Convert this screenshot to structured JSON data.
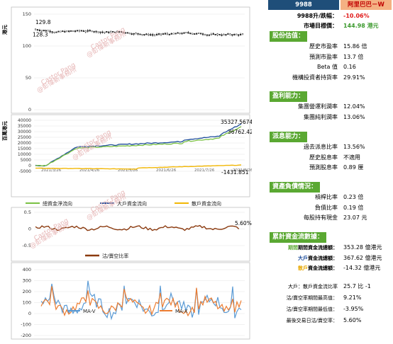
{
  "ticker": {
    "code": "9988",
    "name": "阿里巴巴－W"
  },
  "summary": [
    {
      "label": "9988升/跌幅：",
      "value": "-10.06%",
      "color": "#e01919",
      "bold": true
    },
    {
      "label": "市場目標價：",
      "value": "144.98 港元",
      "color": "#3c9a2e",
      "bold": true
    }
  ],
  "sections": [
    {
      "title": "股份估值：",
      "rows": [
        {
          "label": "歷史市盈率",
          "value": "15.86 倍"
        },
        {
          "label": "預測市盈率",
          "value": "13.7 倍"
        },
        {
          "label": "Beta 值",
          "value": "0.16"
        },
        {
          "label": "機構投資者持貨率",
          "value": "29.91%"
        }
      ]
    },
    {
      "title": "盈利能力：",
      "rows": [
        {
          "label": "集團營運利潤率",
          "value": "12.04%"
        },
        {
          "label": "集團純利潤率",
          "value": "13.06%"
        }
      ]
    },
    {
      "title": "派息能力：",
      "rows": [
        {
          "label": "過去派息比率",
          "value": "13.56%"
        },
        {
          "label": "歷史股息率",
          "value": "不適用"
        },
        {
          "label": "預測股息率",
          "value": "0.89 厘"
        }
      ]
    },
    {
      "title": "資產負債情況：",
      "rows": [
        {
          "label": "槓桿比率",
          "value": "0.23 倍"
        },
        {
          "label": "負債比率",
          "value": "0.19 倍"
        },
        {
          "label": "每股持有現金",
          "value": "23.07 元"
        }
      ]
    },
    {
      "title": "累計資金流數據：",
      "rows": [
        {
          "label": "期間資金流總額：",
          "prefix": "期間",
          "value": "353.28 億港元",
          "prefixColor": "#5aa832"
        },
        {
          "label": "資金流總額：",
          "prefix": "大戶",
          "value": "367.62 億港元",
          "prefixColor": "#1f4e9c"
        },
        {
          "label": "資金流總額：",
          "prefix": "散戶",
          "value": "-14.32 億港元",
          "prefixColor": "#e8a800"
        }
      ]
    }
  ],
  "footer": [
    {
      "label": "大戶：散戶資金流比率",
      "value": "25.7 比 -1"
    },
    {
      "label": "沽/賣空率期間最高值：",
      "value": "9.21%"
    },
    {
      "label": "沽/賣空率期間最低值：",
      "value": "-3.95%"
    },
    {
      "label": "最後交易日沽/賣空率：",
      "value": "5.60%"
    }
  ],
  "watermark": {
    "line1": "Castor Pang",
    "line2": "@彭偉新事務所"
  },
  "chart_data": [
    {
      "type": "line",
      "ylabel": "港元",
      "ylim": [
        0,
        150
      ],
      "yticks": [
        0,
        50,
        100,
        150
      ],
      "annotations": [
        {
          "text": "129.8"
        },
        {
          "text": "128.3"
        }
      ],
      "price_high": 129.8,
      "price_low": 128.3,
      "points": 100,
      "description_free": true
    },
    {
      "type": "line",
      "ylabel": "百萬港元",
      "ylim": [
        -5000,
        40000
      ],
      "yticks": [
        -5000,
        0,
        5000,
        10000,
        15000,
        20000,
        25000,
        30000,
        35000,
        40000
      ],
      "x_tick_labels": [
        "2021/3/26",
        "2021/4/26",
        "2021/5/26",
        "2021/6/26",
        "2021/7/26",
        "2021/8/26"
      ],
      "annotations": [
        {
          "text": "35327.5674"
        },
        {
          "text": "36762.42"
        },
        {
          "text": "-1431.851"
        }
      ],
      "series": [
        {
          "name": "總資金淨流向",
          "color": "#7ac143",
          "final": 35327.5674
        },
        {
          "name": "大戶資金流向",
          "color": "#1f4e9c",
          "final": 36762.42
        },
        {
          "name": "散戶資金流向",
          "color": "#f2b705",
          "final": -1431.851
        }
      ]
    },
    {
      "type": "line",
      "ylim": [
        -0.5,
        0.5
      ],
      "yticks": [
        -0.5,
        0,
        0.5
      ],
      "annotations": [
        {
          "text": "5.60%"
        }
      ],
      "series": [
        {
          "name": "沽/賣空比率",
          "color": "#8b3a0f"
        }
      ],
      "last_value": 0.056
    },
    {
      "type": "line",
      "ylim": [
        -200,
        400
      ],
      "yticks": [
        -200,
        -100,
        0,
        100,
        200,
        300,
        400
      ],
      "series": [
        {
          "name": "MA-V",
          "color": "#5b9bd5"
        },
        {
          "name": "MA-X",
          "color": "#ed7d31"
        }
      ]
    }
  ]
}
